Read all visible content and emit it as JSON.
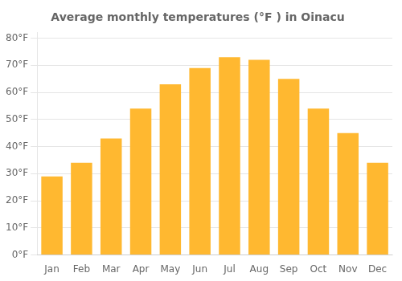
{
  "chart_data": {
    "type": "bar",
    "title": "Average monthly temperatures (°F ) in Oinacu",
    "categories": [
      "Jan",
      "Feb",
      "Mar",
      "Apr",
      "May",
      "Jun",
      "Jul",
      "Aug",
      "Sep",
      "Oct",
      "Nov",
      "Dec"
    ],
    "values": [
      29,
      34,
      43,
      54,
      63,
      69,
      73,
      72,
      65,
      54,
      45,
      34
    ],
    "color": "#FFB830",
    "ylim": [
      0,
      82
    ],
    "yticks": [
      {
        "value": 0,
        "label": "0°F"
      },
      {
        "value": 10,
        "label": "10°F"
      },
      {
        "value": 20,
        "label": "20°F"
      },
      {
        "value": 30,
        "label": "30°F"
      },
      {
        "value": 40,
        "label": "40°F"
      },
      {
        "value": 50,
        "label": "50°F"
      },
      {
        "value": 60,
        "label": "60°F"
      },
      {
        "value": 70,
        "label": "70°F"
      },
      {
        "value": 80,
        "label": "80°F"
      }
    ],
    "grid": true
  }
}
